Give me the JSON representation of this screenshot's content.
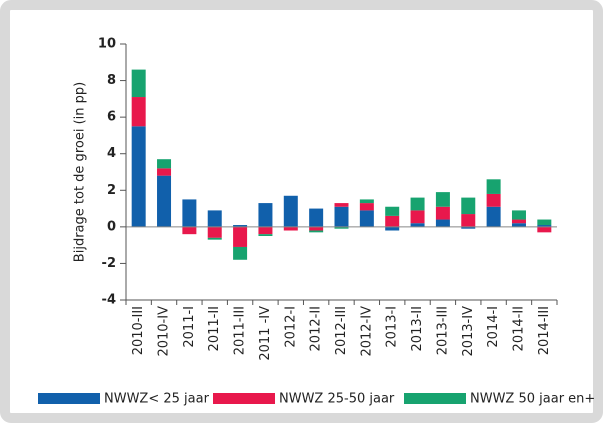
{
  "chart_data": {
    "type": "stacked-bar",
    "y_label": "Bijdrage tot de groei (in pp)",
    "categories": [
      "2010-III",
      "2010-IV",
      "2011-I",
      "2011-II",
      "2011-III",
      "2011 -IV",
      "2012-I",
      "2012-II",
      "2012-III",
      "2012-IV",
      "2013-I",
      "2013-II",
      "2013-III",
      "2013-IV",
      "2014-I",
      "2014-II",
      "2014-III"
    ],
    "series": [
      {
        "name": "NWWZ< 25 jaar",
        "color": "#1160ab",
        "values": [
          5.5,
          2.8,
          1.5,
          0.9,
          0.1,
          1.3,
          1.7,
          1.0,
          1.1,
          0.9,
          -0.2,
          0.2,
          0.4,
          -0.1,
          1.1,
          0.2,
          0.1
        ]
      },
      {
        "name": "NWWZ 25-50 jaar",
        "color": "#e8184c",
        "values": [
          1.6,
          0.4,
          -0.4,
          -0.6,
          -1.1,
          -0.4,
          -0.2,
          -0.2,
          0.2,
          0.4,
          0.6,
          0.7,
          0.7,
          0.7,
          0.7,
          0.2,
          -0.3
        ]
      },
      {
        "name": "NWWZ 50 jaar en+",
        "color": "#17a36f",
        "values": [
          1.5,
          0.5,
          0,
          -0.1,
          -0.7,
          -0.1,
          0,
          -0.1,
          -0.1,
          0.2,
          0.5,
          0.7,
          0.8,
          0.9,
          0.8,
          0.5,
          0.3
        ]
      }
    ],
    "ylim": [
      -4,
      10
    ],
    "yticks": [
      -4,
      -2,
      0,
      2,
      4,
      6,
      8,
      10
    ]
  }
}
